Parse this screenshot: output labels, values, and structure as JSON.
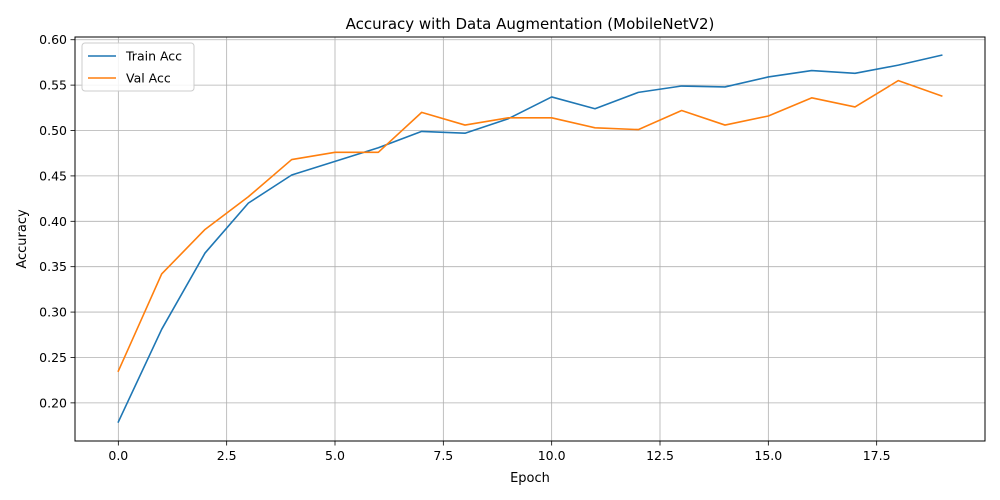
{
  "chart_data": {
    "type": "line",
    "title": "Accuracy with Data Augmentation (MobileNetV2)",
    "xlabel": "Epoch",
    "ylabel": "Accuracy",
    "xlim": [
      -1.0,
      20.0
    ],
    "ylim": [
      0.158,
      0.603
    ],
    "xticks": [
      0.0,
      2.5,
      5.0,
      7.5,
      10.0,
      12.5,
      15.0,
      17.5
    ],
    "xtick_labels": [
      "0.0",
      "2.5",
      "5.0",
      "7.5",
      "10.0",
      "12.5",
      "15.0",
      "17.5"
    ],
    "yticks": [
      0.2,
      0.25,
      0.3,
      0.35,
      0.4,
      0.45,
      0.5,
      0.55,
      0.6
    ],
    "ytick_labels": [
      "0.20",
      "0.25",
      "0.30",
      "0.35",
      "0.40",
      "0.45",
      "0.50",
      "0.55",
      "0.60"
    ],
    "grid": true,
    "legend_position": "top-left",
    "x": [
      0,
      1,
      2,
      3,
      4,
      5,
      6,
      7,
      8,
      9,
      10,
      11,
      12,
      13,
      14,
      15,
      16,
      17,
      18,
      19
    ],
    "series": [
      {
        "name": "Train Acc",
        "color": "#1f77b4",
        "values": [
          0.179,
          0.281,
          0.365,
          0.42,
          0.451,
          0.466,
          0.481,
          0.499,
          0.497,
          0.513,
          0.537,
          0.524,
          0.542,
          0.549,
          0.548,
          0.559,
          0.566,
          0.563,
          0.572,
          0.583
        ]
      },
      {
        "name": "Val Acc",
        "color": "#ff7f0e",
        "values": [
          0.235,
          0.342,
          0.391,
          0.427,
          0.468,
          0.476,
          0.476,
          0.52,
          0.506,
          0.514,
          0.514,
          0.503,
          0.501,
          0.522,
          0.506,
          0.516,
          0.536,
          0.526,
          0.555,
          0.538
        ]
      }
    ]
  }
}
